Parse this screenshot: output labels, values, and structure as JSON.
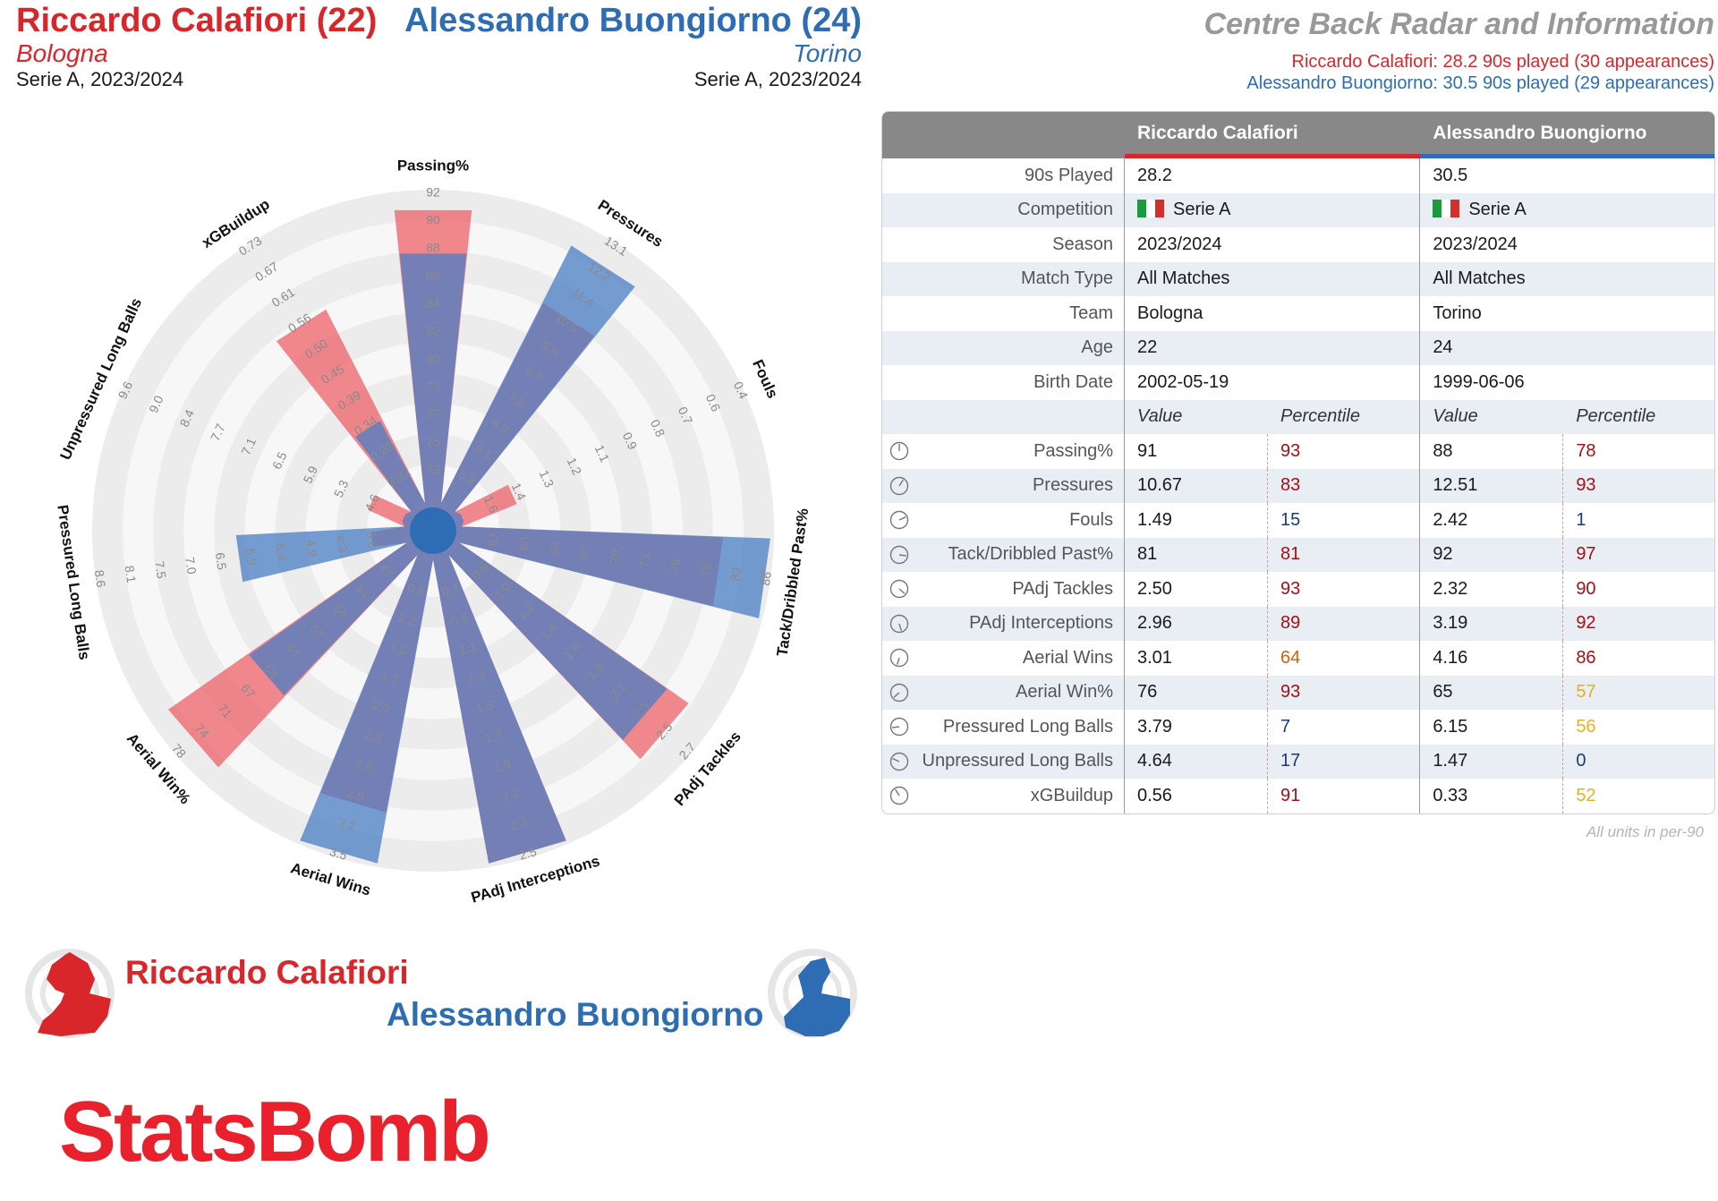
{
  "header": {
    "player1": {
      "name": "Riccardo Calafiori (22)",
      "team": "Bologna",
      "competition": "Serie A, 2023/2024"
    },
    "player2": {
      "name": "Alessandro Buongiorno (24)",
      "team": "Torino",
      "competition": "Serie A, 2023/2024"
    },
    "title": "Centre Back Radar and Information",
    "subtitle1": "Riccardo Calafiori: 28.2 90s played (30 appearances)",
    "subtitle2": "Alessandro Buongiorno: 30.5 90s played (29 appearances)"
  },
  "colors": {
    "player1": "#d9262b",
    "player2": "#2e6db4",
    "p1_fill": "#ee6a70",
    "p2_fill": "#4a7ec4",
    "header_bg": "#888888"
  },
  "chart_data": {
    "type": "radar",
    "metrics": [
      "Passing%",
      "Pressures",
      "Fouls",
      "Tack/Dribbled Past%",
      "PAdj Tackles",
      "PAdj Interceptions",
      "Aerial Wins",
      "Aerial Win%",
      "Pressured Long Balls",
      "Unpressured Long Balls",
      "xGBuildup"
    ],
    "axis_ticks": [
      [
        "73",
        "75",
        "77",
        "78",
        "80",
        "82",
        "84",
        "86",
        "88",
        "90",
        "92"
      ],
      [
        "5.2",
        "6.1",
        "6.9",
        "7.8",
        "8.7",
        "9.6",
        "10.5",
        "11.4",
        "12.2",
        "13.1"
      ],
      [
        "1.6",
        "1.4",
        "1.3",
        "1.2",
        "1.1",
        "0.9",
        "0.8",
        "0.7",
        "0.6",
        "0.4"
      ],
      [
        "57",
        "60",
        "64",
        "67",
        "70",
        "73",
        "76",
        "79",
        "83",
        "86"
      ],
      [
        "0.8",
        "1.0",
        "1.2",
        "1.4",
        "1.6",
        "1.8",
        "2.1",
        "2.3",
        "2.5",
        "2.7"
      ],
      [
        "0.7",
        "0.9",
        "1.1",
        "1.3",
        "1.5",
        "1.7",
        "1.9",
        "2.1",
        "2.3",
        "2.5"
      ],
      [
        "0.9",
        "1.2",
        "1.5",
        "1.7",
        "2.0",
        "2.3",
        "2.6",
        "2.9",
        "3.2",
        "3.5"
      ],
      [
        "47",
        "51",
        "54",
        "57",
        "61",
        "64",
        "67",
        "71",
        "74",
        "78"
      ],
      [
        "3.8",
        "4.3",
        "4.9",
        "5.4",
        "5.9",
        "6.5",
        "7.0",
        "7.5",
        "8.1",
        "8.6"
      ],
      [
        "4.6",
        "5.3",
        "5.9",
        "6.5",
        "7.1",
        "7.7",
        "8.4",
        "9.0",
        "9.6"
      ],
      [
        "0.22",
        "0.28",
        "0.34",
        "0.39",
        "0.45",
        "0.50",
        "0.56",
        "0.61",
        "0.67",
        "0.73"
      ]
    ],
    "series": [
      {
        "name": "Riccardo Calafiori",
        "values": [
          91,
          10.67,
          1.49,
          81,
          2.5,
          2.96,
          3.01,
          76,
          3.79,
          4.64,
          0.56
        ]
      },
      {
        "name": "Alessandro Buongiorno",
        "values": [
          88,
          12.51,
          2.42,
          92,
          2.32,
          3.19,
          4.16,
          65,
          6.15,
          1.47,
          0.33
        ]
      }
    ]
  },
  "table": {
    "col_p1": "Riccardo Calafiori",
    "col_p2": "Alessandro Buongiorno",
    "info_rows": [
      {
        "label": "90s Played",
        "p1": "28.2",
        "p2": "30.5"
      },
      {
        "label": "Competition",
        "p1": "Serie A",
        "p2": "Serie A",
        "flag": true
      },
      {
        "label": "Season",
        "p1": "2023/2024",
        "p2": "2023/2024"
      },
      {
        "label": "Match Type",
        "p1": "All Matches",
        "p2": "All Matches"
      },
      {
        "label": "Team",
        "p1": "Bologna",
        "p2": "Torino"
      },
      {
        "label": "Age",
        "p1": "22",
        "p2": "24"
      },
      {
        "label": "Birth Date",
        "p1": "2002-05-19",
        "p2": "1999-06-06"
      }
    ],
    "value_header": "Value",
    "percentile_header": "Percentile",
    "stat_rows": [
      {
        "label": "Passing%",
        "p1_value": "91",
        "p1_pct": "93",
        "p2_value": "88",
        "p2_pct": "78"
      },
      {
        "label": "Pressures",
        "p1_value": "10.67",
        "p1_pct": "83",
        "p2_value": "12.51",
        "p2_pct": "93"
      },
      {
        "label": "Fouls",
        "p1_value": "1.49",
        "p1_pct": "15",
        "p2_value": "2.42",
        "p2_pct": "1"
      },
      {
        "label": "Tack/Dribbled Past%",
        "p1_value": "81",
        "p1_pct": "81",
        "p2_value": "92",
        "p2_pct": "97"
      },
      {
        "label": "PAdj Tackles",
        "p1_value": "2.50",
        "p1_pct": "93",
        "p2_value": "2.32",
        "p2_pct": "90"
      },
      {
        "label": "PAdj Interceptions",
        "p1_value": "2.96",
        "p1_pct": "89",
        "p2_value": "3.19",
        "p2_pct": "92"
      },
      {
        "label": "Aerial Wins",
        "p1_value": "3.01",
        "p1_pct": "64",
        "p2_value": "4.16",
        "p2_pct": "86"
      },
      {
        "label": "Aerial Win%",
        "p1_value": "76",
        "p1_pct": "93",
        "p2_value": "65",
        "p2_pct": "57"
      },
      {
        "label": "Pressured Long Balls",
        "p1_value": "3.79",
        "p1_pct": "7",
        "p2_value": "6.15",
        "p2_pct": "56"
      },
      {
        "label": "Unpressured Long Balls",
        "p1_value": "4.64",
        "p1_pct": "17",
        "p2_value": "1.47",
        "p2_pct": "0"
      },
      {
        "label": "xGBuildup",
        "p1_value": "0.56",
        "p1_pct": "91",
        "p2_value": "0.33",
        "p2_pct": "52"
      }
    ],
    "units_note": "All units in per-90"
  },
  "legend": {
    "player1": "Riccardo Calafiori",
    "player2": "Alessandro Buongiorno"
  },
  "brand": "StatsBomb"
}
